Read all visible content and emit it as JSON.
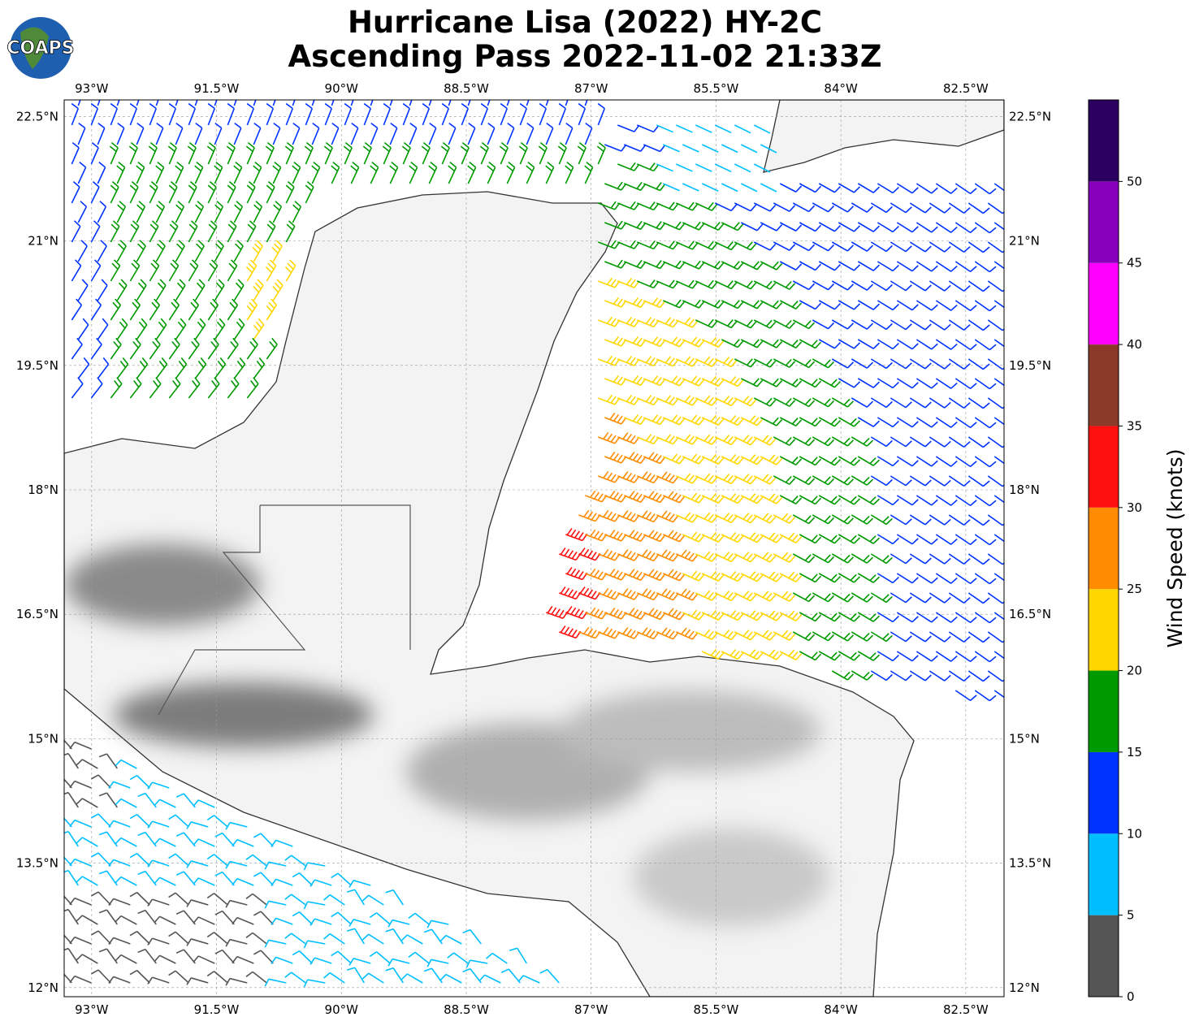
{
  "title": [
    "Hurricane Lisa (2022) HY-2C",
    "Ascending Pass 2022-11-02 21:33Z"
  ],
  "logo": "COAPS",
  "map": {
    "xlim": [
      -93.33,
      -82.04
    ],
    "ylim": [
      11.89,
      22.7
    ],
    "xticks": [
      {
        "value": -93,
        "label": "93°W"
      },
      {
        "value": -91.5,
        "label": "91.5°W"
      },
      {
        "value": -90,
        "label": "90°W"
      },
      {
        "value": -88.5,
        "label": "88.5°W"
      },
      {
        "value": -87,
        "label": "87°W"
      },
      {
        "value": -85.5,
        "label": "85.5°W"
      },
      {
        "value": -84,
        "label": "84°W"
      },
      {
        "value": -82.5,
        "label": "82.5°W"
      }
    ],
    "yticks": [
      {
        "value": 22.5,
        "label": "22.5°N"
      },
      {
        "value": 21,
        "label": "21°N"
      },
      {
        "value": 19.5,
        "label": "19.5°N"
      },
      {
        "value": 18,
        "label": "18°N"
      },
      {
        "value": 16.5,
        "label": "16.5°N"
      },
      {
        "value": 15,
        "label": "15°N"
      },
      {
        "value": 13.5,
        "label": "13.5°N"
      },
      {
        "value": 12,
        "label": "12°N"
      }
    ]
  },
  "colorbar": {
    "label": "Wind Speed (knots)",
    "lim": [
      0,
      55
    ],
    "ticks": [
      0,
      5,
      10,
      15,
      20,
      25,
      30,
      35,
      40,
      45,
      50
    ],
    "colors": [
      "#555555",
      "#00bfff",
      "#0033ff",
      "#009900",
      "#ffd700",
      "#ff8c00",
      "#ff1010",
      "#8b3a2a",
      "#ff00ff",
      "#8800bb",
      "#2b0060"
    ]
  }
}
